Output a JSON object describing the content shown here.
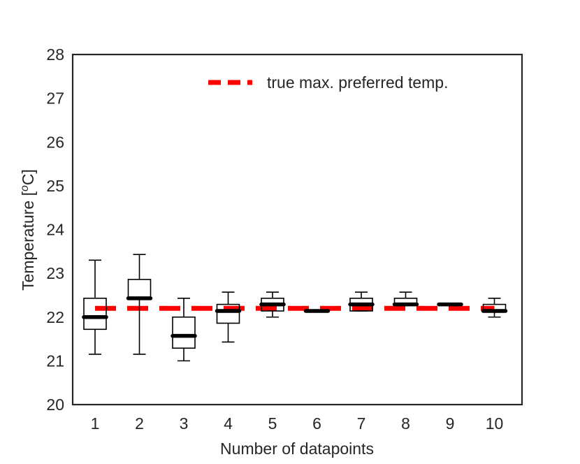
{
  "chart_data": {
    "type": "box",
    "xlabel": "Number of datapoints",
    "ylabel_main": "Temperature [",
    "ylabel_sup": "o",
    "ylabel_tail": "C]",
    "ylim": [
      20,
      28
    ],
    "yticks": [
      20,
      21,
      22,
      23,
      24,
      25,
      26,
      27,
      28
    ],
    "categories": [
      "1",
      "2",
      "3",
      "4",
      "5",
      "6",
      "7",
      "8",
      "9",
      "10"
    ],
    "boxes": [
      {
        "whislo": 21.15,
        "q1": 21.72,
        "med": 22.0,
        "q3": 22.43,
        "whishi": 23.3
      },
      {
        "whislo": 21.15,
        "q1": 22.43,
        "med": 22.43,
        "q3": 22.86,
        "whishi": 23.43
      },
      {
        "whislo": 21.0,
        "q1": 21.29,
        "med": 21.57,
        "q3": 22.0,
        "whishi": 22.43
      },
      {
        "whislo": 21.43,
        "q1": 21.86,
        "med": 22.14,
        "q3": 22.29,
        "whishi": 22.57
      },
      {
        "whislo": 22.0,
        "q1": 22.14,
        "med": 22.29,
        "q3": 22.43,
        "whishi": 22.57
      },
      {
        "whislo": 22.14,
        "q1": 22.14,
        "med": 22.14,
        "q3": 22.14,
        "whishi": 22.14
      },
      {
        "whislo": 22.14,
        "q1": 22.14,
        "med": 22.29,
        "q3": 22.43,
        "whishi": 22.57
      },
      {
        "whislo": 22.29,
        "q1": 22.29,
        "med": 22.29,
        "q3": 22.43,
        "whishi": 22.57
      },
      {
        "whislo": 22.29,
        "q1": 22.29,
        "med": 22.29,
        "q3": 22.29,
        "whishi": 22.29
      },
      {
        "whislo": 22.0,
        "q1": 22.14,
        "med": 22.14,
        "q3": 22.29,
        "whishi": 22.43
      }
    ],
    "reference_line": {
      "label": "true max. preferred temp.",
      "value": 22.2,
      "color": "#ff0000",
      "style": "dashed"
    },
    "legend_placement": "upper-right",
    "grid": false,
    "colors": {
      "box": "#000000",
      "median": "#000000",
      "reference": "#ff0000",
      "frame": "#262626"
    }
  }
}
